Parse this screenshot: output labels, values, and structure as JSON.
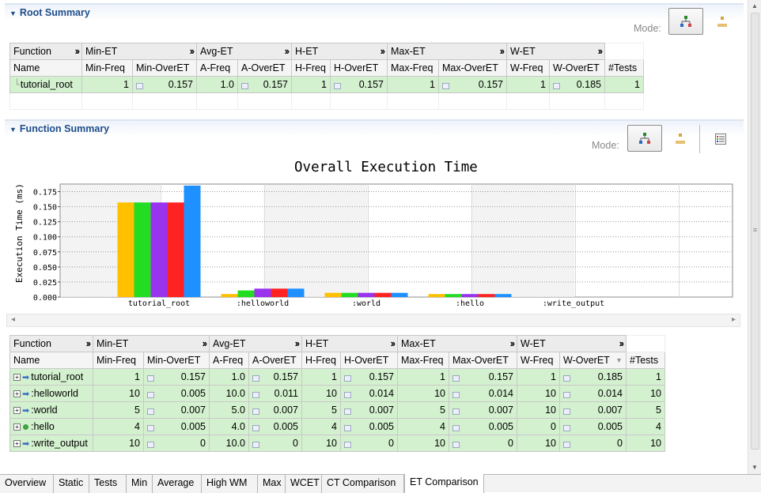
{
  "root_summary": {
    "title": "Root Summary",
    "mode_label": "Mode:",
    "group_headers": [
      "Function",
      "Min-ET",
      "Avg-ET",
      "H-ET",
      "Max-ET",
      "W-ET"
    ],
    "col_headers": [
      "Name",
      "Min-Freq",
      "Min-OverET",
      "A-Freq",
      "A-OverET",
      "H-Freq",
      "H-OverET",
      "Max-Freq",
      "Max-OverET",
      "W-Freq",
      "W-OverET",
      "#Tests"
    ],
    "rows": [
      {
        "name": "tutorial_root",
        "min_freq": "1",
        "min_over": "0.157",
        "a_freq": "1.0",
        "a_over": "0.157",
        "h_freq": "1",
        "h_over": "0.157",
        "max_freq": "1",
        "max_over": "0.157",
        "w_freq": "1",
        "w_over": "0.185",
        "tests": "1"
      }
    ]
  },
  "function_summary": {
    "title": "Function Summary",
    "mode_label": "Mode:",
    "group_headers": [
      "Function",
      "Min-ET",
      "Avg-ET",
      "H-ET",
      "Max-ET",
      "W-ET"
    ],
    "col_headers": [
      "Name",
      "Min-Freq",
      "Min-OverET",
      "A-Freq",
      "A-OverET",
      "H-Freq",
      "H-OverET",
      "Max-Freq",
      "Max-OverET",
      "W-Freq",
      "W-OverET",
      "#Tests"
    ],
    "rows": [
      {
        "name": "tutorial_root",
        "icon": "arrow",
        "min_freq": "1",
        "min_over": "0.157",
        "a_freq": "1.0",
        "a_over": "0.157",
        "h_freq": "1",
        "h_over": "0.157",
        "max_freq": "1",
        "max_over": "0.157",
        "w_freq": "1",
        "w_over": "0.185",
        "tests": "1"
      },
      {
        "name": ":helloworld",
        "icon": "arrow",
        "min_freq": "10",
        "min_over": "0.005",
        "a_freq": "10.0",
        "a_over": "0.011",
        "h_freq": "10",
        "h_over": "0.014",
        "max_freq": "10",
        "max_over": "0.014",
        "w_freq": "10",
        "w_over": "0.014",
        "tests": "10"
      },
      {
        "name": ":world",
        "icon": "arrow",
        "min_freq": "5",
        "min_over": "0.007",
        "a_freq": "5.0",
        "a_over": "0.007",
        "h_freq": "5",
        "h_over": "0.007",
        "max_freq": "5",
        "max_over": "0.007",
        "w_freq": "10",
        "w_over": "0.007",
        "tests": "5"
      },
      {
        "name": ":hello",
        "icon": "dot",
        "min_freq": "4",
        "min_over": "0.005",
        "a_freq": "4.0",
        "a_over": "0.005",
        "h_freq": "4",
        "h_over": "0.005",
        "max_freq": "4",
        "max_over": "0.005",
        "w_freq": "0",
        "w_over": "0.005",
        "tests": "4"
      },
      {
        "name": ":write_output",
        "icon": "arrow",
        "min_freq": "10",
        "min_over": "0",
        "a_freq": "10.0",
        "a_over": "0",
        "h_freq": "10",
        "h_over": "0",
        "max_freq": "10",
        "max_over": "0",
        "w_freq": "10",
        "w_over": "0",
        "tests": "10"
      }
    ]
  },
  "chart_data": {
    "type": "bar",
    "title": "Overall Execution Time",
    "xlabel": "",
    "ylabel": "Execution Time (ms)",
    "ylim": [
      0,
      0.1875
    ],
    "yticks": [
      "0.000",
      "0.025",
      "0.050",
      "0.075",
      "0.100",
      "0.125",
      "0.150",
      "0.175"
    ],
    "grid": true,
    "categories": [
      "tutorial_root",
      ":helloworld",
      ":world",
      ":hello",
      ":write_output"
    ],
    "series": [
      {
        "color": "#ffc000",
        "values": [
          0.157,
          0.005,
          0.007,
          0.005,
          0
        ]
      },
      {
        "color": "#22dd22",
        "values": [
          0.157,
          0.011,
          0.007,
          0.005,
          0
        ]
      },
      {
        "color": "#9933ee",
        "values": [
          0.157,
          0.014,
          0.007,
          0.005,
          0
        ]
      },
      {
        "color": "#ff2222",
        "values": [
          0.157,
          0.014,
          0.007,
          0.005,
          0
        ]
      },
      {
        "color": "#1e90ff",
        "values": [
          0.185,
          0.014,
          0.007,
          0.005,
          0
        ]
      }
    ]
  },
  "tabs": [
    "Overview",
    "Static",
    "Tests",
    "Min",
    "Average",
    "High WM",
    "Max",
    "WCET",
    "CT Comparison",
    "ET Comparison"
  ],
  "active_tab": "ET Comparison",
  "icons": {
    "collapse": "triangle-down-icon",
    "mode_tree": "tree-mode-icon",
    "mode_flat": "flat-mode-icon",
    "mode_list": "list-mode-icon",
    "mini_chart": "mini-chart-icon",
    "call_arrow": "call-arrow-icon"
  }
}
